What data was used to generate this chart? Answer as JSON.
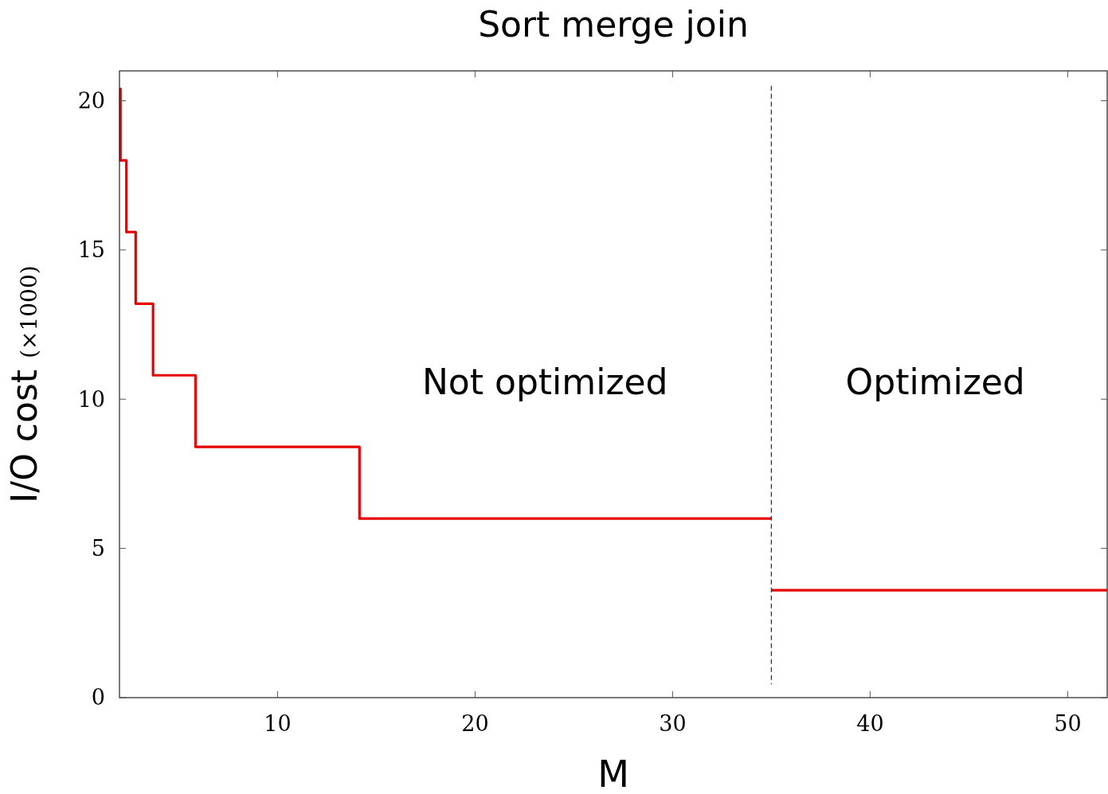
{
  "chart_data": {
    "type": "step",
    "title": "Sort merge join",
    "xlabel": "M",
    "ylabel": "I/O cost (×1000)",
    "xlim": [
      2,
      52
    ],
    "ylim": [
      0,
      21
    ],
    "xticks": [
      10,
      20,
      30,
      40,
      50
    ],
    "yticks": [
      0,
      5,
      10,
      15,
      20
    ],
    "grid": false,
    "series": [
      {
        "color": "#e60000",
        "x": [
          2,
          2.05,
          2.35,
          2.82,
          3.7,
          5.85,
          14.15,
          35
        ],
        "values": [
          20.4,
          18,
          15.6,
          13.2,
          10.8,
          8.4,
          6,
          6
        ]
      },
      {
        "color": "#e60000",
        "x": [
          35,
          52
        ],
        "values": [
          3.6,
          3.6
        ]
      }
    ],
    "ref_lines": [
      {
        "axis": "x",
        "value": 35,
        "line_style": "dashed",
        "color": "#333333"
      }
    ],
    "annotations": [
      "Not optimized",
      "Optimized"
    ]
  }
}
